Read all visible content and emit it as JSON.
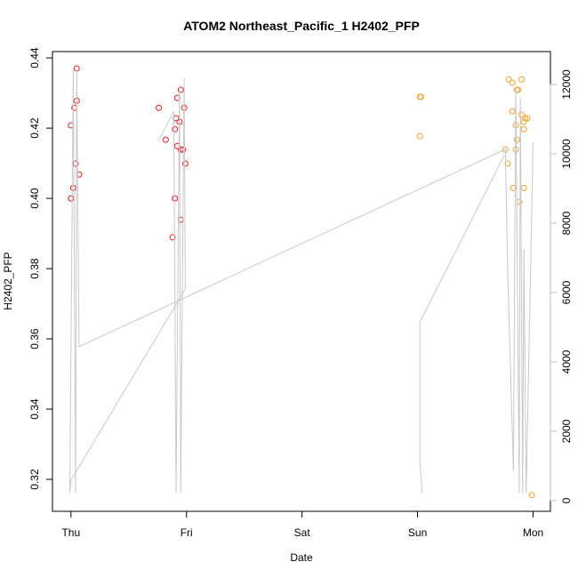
{
  "chart_data": {
    "type": "scatter",
    "title": "ATOM2 Northeast_Pacific_1 H2402_PFP",
    "x_label": "Date",
    "y_label": "H2402_PFP",
    "xlim": [
      -0.16,
      4.15
    ],
    "xticks": [
      {
        "value": 0,
        "label": "Thu"
      },
      {
        "value": 1,
        "label": "Fri"
      },
      {
        "value": 2,
        "label": "Sat"
      },
      {
        "value": 3,
        "label": "Sun"
      },
      {
        "value": 4,
        "label": "Mon"
      }
    ],
    "ylim": [
      0.3109,
      0.4418
    ],
    "yticks": [
      0.32,
      0.34,
      0.36,
      0.38,
      {
        "value": 0.4,
        "label": "0.40"
      },
      0.42,
      0.44
    ],
    "y2lim": [
      -308,
      12949
    ],
    "y2ticks": [
      0,
      2000,
      4000,
      6000,
      8000,
      10000,
      12000
    ],
    "y2_color": "#bdbdbd",
    "series": [
      {
        "color": "#e41a1c",
        "x": [
          0,
          0,
          0.02,
          0.03,
          0.04,
          0.05,
          0.05,
          0.07,
          0.76,
          0.82,
          0.88,
          0.9,
          0.9,
          0.91,
          0.92,
          0.92,
          0.94,
          0.95,
          0.95,
          0.95,
          0.97,
          0.98,
          0.99
        ],
        "values": [
          0.4208,
          0.4,
          0.403,
          0.4258,
          0.4099,
          0.4278,
          0.437,
          0.4068,
          0.4258,
          0.4167,
          0.3889,
          0.4,
          0.4197,
          0.4228,
          0.4286,
          0.4149,
          0.4218,
          0.4309,
          0.4139,
          0.3939,
          0.4139,
          0.4258,
          0.4099
        ]
      },
      {
        "color": "#f0a030",
        "x": [
          3.02,
          3.03,
          3.02,
          3.79,
          3.82,
          3.76,
          3.78,
          3.82,
          3.83,
          3.85,
          3.85,
          3.86,
          3.86,
          3.87,
          3.88,
          3.9,
          3.9,
          3.92,
          3.92,
          3.92,
          3.93,
          3.95,
          3.99
        ],
        "values": [
          0.4289,
          0.4289,
          0.4177,
          0.4339,
          0.4329,
          0.4139,
          0.4099,
          0.4248,
          0.403,
          0.4208,
          0.4139,
          0.4309,
          0.4167,
          0.4309,
          0.399,
          0.4339,
          0.4238,
          0.4197,
          0.4218,
          0.403,
          0.4228,
          0.4228,
          0.3155
        ]
      },
      {
        "type": "line",
        "axis": "y2",
        "color": "#c8c8c8",
        "x": [
          0.76,
          0.89,
          0.91,
          0.94,
          0.95,
          0.98,
          0.99,
          0,
          -0.01,
          0.02,
          0.04,
          0.05,
          0.07,
          3.76,
          3.78,
          3.83,
          3.85,
          3.88,
          3.89,
          3.91,
          3.92,
          3.94,
          4.0,
          null,
          3.04,
          3.02,
          3.02,
          3.75
        ],
        "values": [
          10380,
          11230,
          210,
          12000,
          210,
          12180,
          6100,
          590,
          210,
          12440,
          210,
          12440,
          4440,
          10130,
          6670,
          850,
          11870,
          210,
          11620,
          210,
          7260,
          210,
          10330,
          null,
          210,
          1100,
          5150,
          9950
        ]
      }
    ]
  }
}
